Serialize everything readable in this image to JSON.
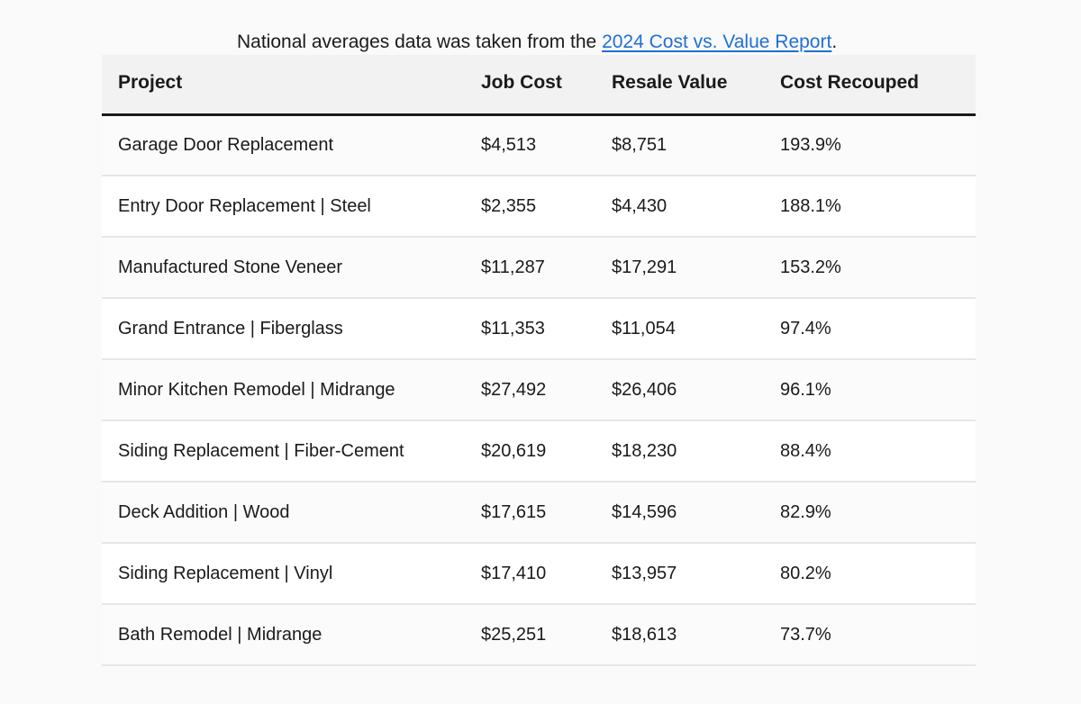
{
  "caption": {
    "prefix": "National averages data was taken from the ",
    "link_text": "2024 Cost vs. Value Report",
    "suffix": "."
  },
  "table": {
    "headers": [
      "Project",
      "Job Cost",
      "Resale Value",
      "Cost Recouped"
    ],
    "rows": [
      [
        "Garage Door Replacement",
        "$4,513",
        "$8,751",
        "193.9%"
      ],
      [
        "Entry Door Replacement | Steel",
        "$2,355",
        "$4,430",
        "188.1%"
      ],
      [
        "Manufactured Stone Veneer",
        "$11,287",
        "$17,291",
        "153.2%"
      ],
      [
        "Grand Entrance | Fiberglass",
        "$11,353",
        "$11,054",
        "97.4%"
      ],
      [
        "Minor Kitchen Remodel | Midrange",
        "$27,492",
        "$26,406",
        "96.1%"
      ],
      [
        "Siding Replacement | Fiber-Cement",
        "$20,619",
        "$18,230",
        "88.4%"
      ],
      [
        "Deck Addition | Wood",
        "$17,615",
        "$14,596",
        "82.9%"
      ],
      [
        "Siding Replacement | Vinyl",
        "$17,410",
        "$13,957",
        "80.2%"
      ],
      [
        "Bath Remodel | Midrange",
        "$25,251",
        "$18,613",
        "73.7%"
      ]
    ]
  },
  "colors": {
    "link": "#1f6fd6",
    "header_background": "#f2f2f2",
    "header_rule": "#1a1a1a",
    "row_divider": "#e6e6e6"
  }
}
